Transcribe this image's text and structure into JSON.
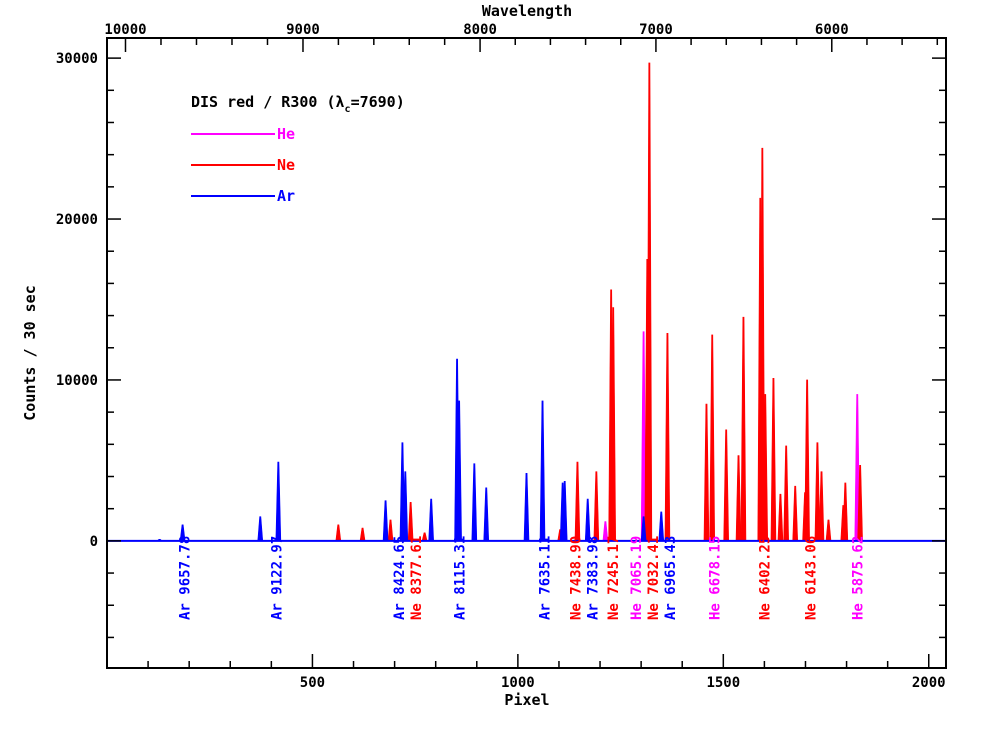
{
  "chart_data": {
    "type": "line",
    "title": "DIS red / R300 (λc=7690)",
    "title_parts": {
      "main": "DIS red / R300 (λ",
      "sub": "c",
      "tail": "=7690)"
    },
    "xlabel": "Pixel",
    "ylabel": "Counts / 30 sec",
    "x2label": "Wavelength",
    "xlim": [
      0,
      2042
    ],
    "ylim": [
      -7900,
      31250
    ],
    "xticks": [
      500,
      1000,
      1500,
      2000
    ],
    "xtick_labels": [
      "500",
      "1000",
      "1500",
      "2000"
    ],
    "yticks": [
      0,
      10000,
      20000,
      30000
    ],
    "ytick_labels": [
      "0",
      "10000",
      "20000",
      "30000"
    ],
    "x2ticks": [
      {
        "label": "10000",
        "pixel": 45
      },
      {
        "label": "9000",
        "pixel": 477
      },
      {
        "label": "8000",
        "pixel": 908
      },
      {
        "label": "7000",
        "pixel": 1336
      },
      {
        "label": "6000",
        "pixel": 1764
      }
    ],
    "grid": false,
    "legend_position": "top-left",
    "colors": {
      "He": "#ff00ff",
      "Ne": "#ff0000",
      "Ar": "#0000ff",
      "axis": "#000000"
    },
    "series": [
      {
        "name": "He",
        "color": "#ff00ff",
        "peaks": [
          [
            1213,
            1200
          ],
          [
            1306,
            13000
          ],
          [
            1826,
            9100
          ]
        ]
      },
      {
        "name": "Ne",
        "color": "#ff0000",
        "peaks": [
          [
            563,
            1000
          ],
          [
            622,
            800
          ],
          [
            690,
            1300
          ],
          [
            739,
            2400
          ],
          [
            773,
            500
          ],
          [
            1103,
            700
          ],
          [
            1145,
            4900
          ],
          [
            1191,
            4300
          ],
          [
            1227,
            15600
          ],
          [
            1232,
            14500
          ],
          [
            1315,
            17500
          ],
          [
            1320,
            29700
          ],
          [
            1364,
            12900
          ],
          [
            1459,
            8500
          ],
          [
            1473,
            12800
          ],
          [
            1507,
            6900
          ],
          [
            1537,
            5300
          ],
          [
            1549,
            13900
          ],
          [
            1590,
            21300
          ],
          [
            1595,
            24400
          ],
          [
            1602,
            9100
          ],
          [
            1622,
            10100
          ],
          [
            1639,
            2900
          ],
          [
            1653,
            5900
          ],
          [
            1675,
            3400
          ],
          [
            1699,
            3000
          ],
          [
            1704,
            10000
          ],
          [
            1729,
            6100
          ],
          [
            1739,
            4300
          ],
          [
            1756,
            1300
          ],
          [
            1792,
            2200
          ],
          [
            1797,
            3600
          ],
          [
            1833,
            4700
          ]
        ]
      },
      {
        "name": "Ar",
        "color": "#0000ff",
        "peaks": [
          [
            128,
            100
          ],
          [
            184,
            1000
          ],
          [
            373,
            1500
          ],
          [
            417,
            4900
          ],
          [
            678,
            2500
          ],
          [
            719,
            6100
          ],
          [
            726,
            4300
          ],
          [
            789,
            2600
          ],
          [
            852,
            11300
          ],
          [
            857,
            8700
          ],
          [
            894,
            4800
          ],
          [
            923,
            3300
          ],
          [
            1021,
            4200
          ],
          [
            1060,
            8700
          ],
          [
            1109,
            3600
          ],
          [
            1114,
            3700
          ],
          [
            1170,
            2600
          ],
          [
            1306,
            1500
          ],
          [
            1349,
            1800
          ]
        ]
      }
    ],
    "annotations": [
      {
        "text": "Ar 9657.78",
        "pixel": 189,
        "color": "#0000ff"
      },
      {
        "text": "Ar 9122.97",
        "pixel": 412,
        "color": "#0000ff"
      },
      {
        "text": "Ar 8424.65",
        "pixel": 721,
        "color": "#0000ff"
      },
      {
        "text": "Ne 8377.61",
        "pixel": 741,
        "color": "#ff0000"
      },
      {
        "text": "Ar 8115.31",
        "pixel": 858,
        "color": "#0000ff"
      },
      {
        "text": "Ar 7635.11",
        "pixel": 1065,
        "color": "#0000ff"
      },
      {
        "text": "Ne 7438.90",
        "pixel": 1145,
        "color": "#ff0000"
      },
      {
        "text": "Ar 7383.98",
        "pixel": 1176,
        "color": "#0000ff"
      },
      {
        "text": "Ne 7245.17",
        "pixel": 1232,
        "color": "#ff0000"
      },
      {
        "text": "He 7065.19",
        "pixel": 1305,
        "color": "#ff00ff"
      },
      {
        "text": "Ne 7032.41",
        "pixel": 1327,
        "color": "#ff0000"
      },
      {
        "text": "Ar 6965.43",
        "pixel": 1356,
        "color": "#0000ff"
      },
      {
        "text": "He 6678.15",
        "pixel": 1478,
        "color": "#ff00ff"
      },
      {
        "text": "Ne 6402.25",
        "pixel": 1600,
        "color": "#ff0000"
      },
      {
        "text": "Ne 6143.06",
        "pixel": 1712,
        "color": "#ff0000"
      },
      {
        "text": "He 5875.62",
        "pixel": 1826,
        "color": "#ff00ff"
      }
    ]
  }
}
